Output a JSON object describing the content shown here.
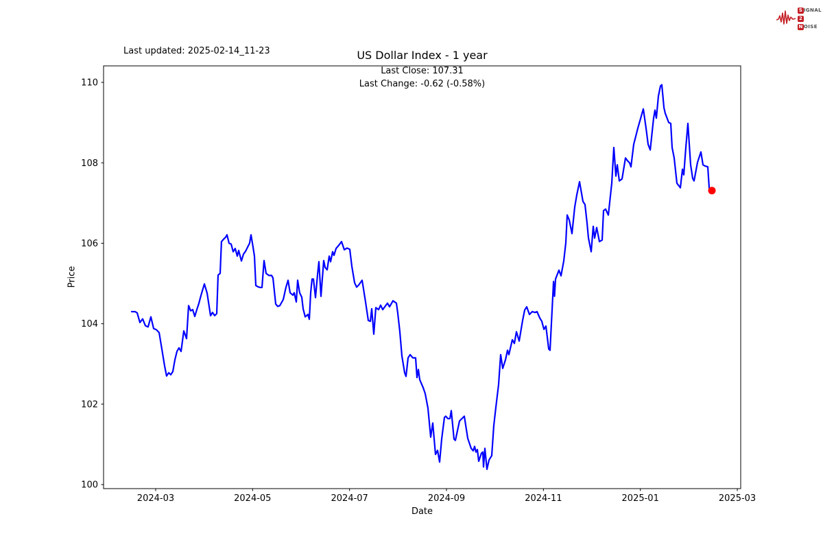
{
  "header": {
    "last_updated": "Last updated: 2025-02-14_11-23",
    "title": "US Dollar Index - 1 year",
    "subtitle_line1": "Last Close: 107.31",
    "subtitle_line2": "Last Change: -0.62 (-0.58%)"
  },
  "logo": {
    "name": "signal2noise-logo",
    "accent_color": "#c41e24",
    "text_color": "#4d4d4d",
    "row1_initial": "S",
    "row1_rest": "IGNAL",
    "row2_initial": "2",
    "row2_rest": "",
    "row3_initial": "N",
    "row3_rest": "OISE"
  },
  "axes": {
    "x_label": "Date",
    "y_label": "Price",
    "x_ticks": [
      {
        "value": 2,
        "label": "2024-03"
      },
      {
        "value": 4,
        "label": "2024-05"
      },
      {
        "value": 6,
        "label": "2024-07"
      },
      {
        "value": 8,
        "label": "2024-09"
      },
      {
        "value": 10,
        "label": "2024-11"
      },
      {
        "value": 12,
        "label": "2025-01"
      },
      {
        "value": 14,
        "label": "2025-03"
      }
    ],
    "y_ticks": [
      100,
      102,
      104,
      106,
      108,
      110
    ],
    "x_range": [
      0.925,
      14.07
    ],
    "y_range": [
      99.9,
      110.41
    ]
  },
  "chart_data": {
    "type": "line",
    "title": "US Dollar Index - 1 year",
    "xlabel": "Date",
    "ylabel": "Price",
    "x_unit": "months since 2024-01-01 (2.0 = 2024-03-01)",
    "ylim": [
      99.9,
      110.41
    ],
    "grid": false,
    "legend": "none",
    "line_color": "#0000ff",
    "marker_color": "#ff0000",
    "last_close": 107.31,
    "last_change": "-0.62 (-0.58%)",
    "series": [
      {
        "name": "US Dollar Index",
        "points": [
          [
            1.505,
            104.3
          ],
          [
            1.575,
            104.3
          ],
          [
            1.618,
            104.27
          ],
          [
            1.675,
            104.03
          ],
          [
            1.731,
            104.12
          ],
          [
            1.788,
            103.95
          ],
          [
            1.844,
            103.92
          ],
          [
            1.901,
            104.17
          ],
          [
            1.958,
            103.88
          ],
          [
            2.014,
            103.85
          ],
          [
            2.071,
            103.78
          ],
          [
            2.127,
            103.38
          ],
          [
            2.184,
            102.95
          ],
          [
            2.226,
            102.7
          ],
          [
            2.269,
            102.78
          ],
          [
            2.311,
            102.73
          ],
          [
            2.354,
            102.81
          ],
          [
            2.396,
            103.1
          ],
          [
            2.439,
            103.31
          ],
          [
            2.481,
            103.4
          ],
          [
            2.524,
            103.31
          ],
          [
            2.58,
            103.82
          ],
          [
            2.637,
            103.63
          ],
          [
            2.679,
            104.45
          ],
          [
            2.722,
            104.32
          ],
          [
            2.764,
            104.35
          ],
          [
            2.807,
            104.18
          ],
          [
            2.849,
            104.35
          ],
          [
            2.891,
            104.5
          ],
          [
            2.934,
            104.7
          ],
          [
            3.005,
            104.99
          ],
          [
            3.061,
            104.76
          ],
          [
            3.132,
            104.2
          ],
          [
            3.174,
            104.28
          ],
          [
            3.217,
            104.2
          ],
          [
            3.259,
            104.25
          ],
          [
            3.288,
            105.21
          ],
          [
            3.33,
            105.25
          ],
          [
            3.358,
            106.04
          ],
          [
            3.401,
            106.1
          ],
          [
            3.443,
            106.15
          ],
          [
            3.472,
            106.21
          ],
          [
            3.514,
            106.0
          ],
          [
            3.557,
            105.98
          ],
          [
            3.599,
            105.79
          ],
          [
            3.641,
            105.87
          ],
          [
            3.684,
            105.68
          ],
          [
            3.712,
            105.82
          ],
          [
            3.769,
            105.56
          ],
          [
            3.811,
            105.73
          ],
          [
            3.854,
            105.8
          ],
          [
            3.896,
            105.9
          ],
          [
            3.938,
            106.0
          ],
          [
            3.967,
            106.21
          ],
          [
            4.009,
            105.9
          ],
          [
            4.038,
            105.68
          ],
          [
            4.066,
            104.95
          ],
          [
            4.108,
            104.92
          ],
          [
            4.151,
            104.9
          ],
          [
            4.193,
            104.9
          ],
          [
            4.236,
            105.57
          ],
          [
            4.278,
            105.25
          ],
          [
            4.335,
            105.2
          ],
          [
            4.391,
            105.2
          ],
          [
            4.42,
            105.14
          ],
          [
            4.476,
            104.49
          ],
          [
            4.519,
            104.43
          ],
          [
            4.561,
            104.45
          ],
          [
            4.632,
            104.6
          ],
          [
            4.688,
            104.9
          ],
          [
            4.731,
            105.08
          ],
          [
            4.773,
            104.77
          ],
          [
            4.83,
            104.71
          ],
          [
            4.858,
            104.77
          ],
          [
            4.901,
            104.54
          ],
          [
            4.929,
            105.08
          ],
          [
            4.971,
            104.77
          ],
          [
            5.014,
            104.66
          ],
          [
            5.042,
            104.37
          ],
          [
            5.085,
            104.17
          ],
          [
            5.113,
            104.2
          ],
          [
            5.141,
            104.23
          ],
          [
            5.17,
            104.11
          ],
          [
            5.198,
            104.77
          ],
          [
            5.226,
            105.11
          ],
          [
            5.255,
            105.11
          ],
          [
            5.297,
            104.65
          ],
          [
            5.34,
            105.22
          ],
          [
            5.368,
            105.54
          ],
          [
            5.41,
            104.68
          ],
          [
            5.467,
            105.57
          ],
          [
            5.495,
            105.4
          ],
          [
            5.538,
            105.34
          ],
          [
            5.58,
            105.68
          ],
          [
            5.608,
            105.54
          ],
          [
            5.651,
            105.79
          ],
          [
            5.679,
            105.7
          ],
          [
            5.722,
            105.87
          ],
          [
            5.778,
            105.95
          ],
          [
            5.835,
            106.04
          ],
          [
            5.891,
            105.84
          ],
          [
            5.948,
            105.88
          ],
          [
            6.005,
            105.85
          ],
          [
            6.047,
            105.43
          ],
          [
            6.104,
            105.02
          ],
          [
            6.146,
            104.91
          ],
          [
            6.189,
            104.96
          ],
          [
            6.259,
            105.08
          ],
          [
            6.33,
            104.54
          ],
          [
            6.387,
            104.08
          ],
          [
            6.429,
            104.06
          ],
          [
            6.458,
            104.37
          ],
          [
            6.5,
            103.74
          ],
          [
            6.542,
            104.4
          ],
          [
            6.599,
            104.35
          ],
          [
            6.641,
            104.46
          ],
          [
            6.684,
            104.35
          ],
          [
            6.726,
            104.42
          ],
          [
            6.783,
            104.51
          ],
          [
            6.825,
            104.42
          ],
          [
            6.896,
            104.57
          ],
          [
            6.967,
            104.51
          ],
          [
            6.995,
            104.26
          ],
          [
            7.038,
            103.8
          ],
          [
            7.08,
            103.2
          ],
          [
            7.137,
            102.78
          ],
          [
            7.165,
            102.69
          ],
          [
            7.207,
            103.15
          ],
          [
            7.25,
            103.23
          ],
          [
            7.306,
            103.15
          ],
          [
            7.363,
            103.15
          ],
          [
            7.391,
            102.66
          ],
          [
            7.42,
            102.86
          ],
          [
            7.448,
            102.61
          ],
          [
            7.519,
            102.41
          ],
          [
            7.561,
            102.26
          ],
          [
            7.618,
            101.9
          ],
          [
            7.674,
            101.18
          ],
          [
            7.717,
            101.53
          ],
          [
            7.773,
            100.75
          ],
          [
            7.816,
            100.85
          ],
          [
            7.858,
            100.56
          ],
          [
            7.901,
            101.13
          ],
          [
            7.957,
            101.67
          ],
          [
            7.986,
            101.7
          ],
          [
            8.028,
            101.64
          ],
          [
            8.071,
            101.64
          ],
          [
            8.099,
            101.84
          ],
          [
            8.156,
            101.13
          ],
          [
            8.184,
            101.1
          ],
          [
            8.269,
            101.58
          ],
          [
            8.368,
            101.7
          ],
          [
            8.439,
            101.15
          ],
          [
            8.509,
            100.9
          ],
          [
            8.552,
            100.84
          ],
          [
            8.58,
            100.95
          ],
          [
            8.608,
            100.81
          ],
          [
            8.637,
            100.87
          ],
          [
            8.665,
            100.58
          ],
          [
            8.722,
            100.78
          ],
          [
            8.75,
            100.81
          ],
          [
            8.764,
            100.44
          ],
          [
            8.792,
            100.9
          ],
          [
            8.835,
            100.38
          ],
          [
            8.877,
            100.61
          ],
          [
            8.934,
            100.72
          ],
          [
            8.976,
            101.47
          ],
          [
            9.019,
            101.92
          ],
          [
            9.075,
            102.49
          ],
          [
            9.118,
            103.23
          ],
          [
            9.16,
            102.89
          ],
          [
            9.217,
            103.1
          ],
          [
            9.259,
            103.34
          ],
          [
            9.288,
            103.23
          ],
          [
            9.358,
            103.6
          ],
          [
            9.401,
            103.51
          ],
          [
            9.443,
            103.8
          ],
          [
            9.5,
            103.57
          ],
          [
            9.571,
            104.08
          ],
          [
            9.613,
            104.34
          ],
          [
            9.656,
            104.42
          ],
          [
            9.712,
            104.23
          ],
          [
            9.769,
            104.3
          ],
          [
            9.826,
            104.28
          ],
          [
            9.868,
            104.3
          ],
          [
            9.925,
            104.14
          ],
          [
            9.967,
            104.06
          ],
          [
            10.01,
            103.86
          ],
          [
            10.052,
            103.94
          ],
          [
            10.109,
            103.37
          ],
          [
            10.137,
            103.34
          ],
          [
            10.208,
            105.05
          ],
          [
            10.229,
            104.68
          ],
          [
            10.25,
            105.11
          ],
          [
            10.321,
            105.33
          ],
          [
            10.363,
            105.19
          ],
          [
            10.42,
            105.56
          ],
          [
            10.462,
            106.01
          ],
          [
            10.49,
            106.7
          ],
          [
            10.533,
            106.58
          ],
          [
            10.589,
            106.24
          ],
          [
            10.646,
            106.9
          ],
          [
            10.688,
            107.2
          ],
          [
            10.745,
            107.53
          ],
          [
            10.816,
            107.04
          ],
          [
            10.858,
            106.96
          ],
          [
            10.901,
            106.5
          ],
          [
            10.929,
            106.13
          ],
          [
            10.986,
            105.79
          ],
          [
            11.028,
            106.42
          ],
          [
            11.056,
            106.13
          ],
          [
            11.099,
            106.39
          ],
          [
            11.155,
            106.04
          ],
          [
            11.212,
            106.08
          ],
          [
            11.24,
            106.81
          ],
          [
            11.283,
            106.85
          ],
          [
            11.339,
            106.7
          ],
          [
            11.41,
            107.49
          ],
          [
            11.452,
            108.38
          ],
          [
            11.495,
            107.67
          ],
          [
            11.523,
            107.95
          ],
          [
            11.565,
            107.55
          ],
          [
            11.622,
            107.6
          ],
          [
            11.693,
            108.12
          ],
          [
            11.735,
            108.05
          ],
          [
            11.778,
            108.0
          ],
          [
            11.806,
            107.9
          ],
          [
            11.863,
            108.46
          ],
          [
            11.905,
            108.66
          ],
          [
            11.948,
            108.86
          ],
          [
            12.004,
            109.1
          ],
          [
            12.061,
            109.34
          ],
          [
            12.118,
            108.86
          ],
          [
            12.16,
            108.46
          ],
          [
            12.203,
            108.32
          ],
          [
            12.273,
            109.11
          ],
          [
            12.302,
            109.31
          ],
          [
            12.33,
            109.11
          ],
          [
            12.372,
            109.66
          ],
          [
            12.415,
            109.91
          ],
          [
            12.443,
            109.94
          ],
          [
            12.486,
            109.37
          ],
          [
            12.514,
            109.23
          ],
          [
            12.585,
            109.0
          ],
          [
            12.627,
            108.98
          ],
          [
            12.655,
            108.38
          ],
          [
            12.698,
            108.12
          ],
          [
            12.754,
            107.49
          ],
          [
            12.825,
            107.38
          ],
          [
            12.868,
            107.84
          ],
          [
            12.896,
            107.7
          ],
          [
            12.938,
            108.38
          ],
          [
            12.981,
            108.98
          ],
          [
            13.037,
            107.95
          ],
          [
            13.08,
            107.61
          ],
          [
            13.108,
            107.55
          ],
          [
            13.179,
            108.01
          ],
          [
            13.25,
            108.27
          ],
          [
            13.292,
            107.95
          ],
          [
            13.335,
            107.92
          ],
          [
            13.391,
            107.9
          ],
          [
            13.42,
            107.36
          ],
          [
            13.476,
            107.31
          ]
        ]
      }
    ]
  }
}
